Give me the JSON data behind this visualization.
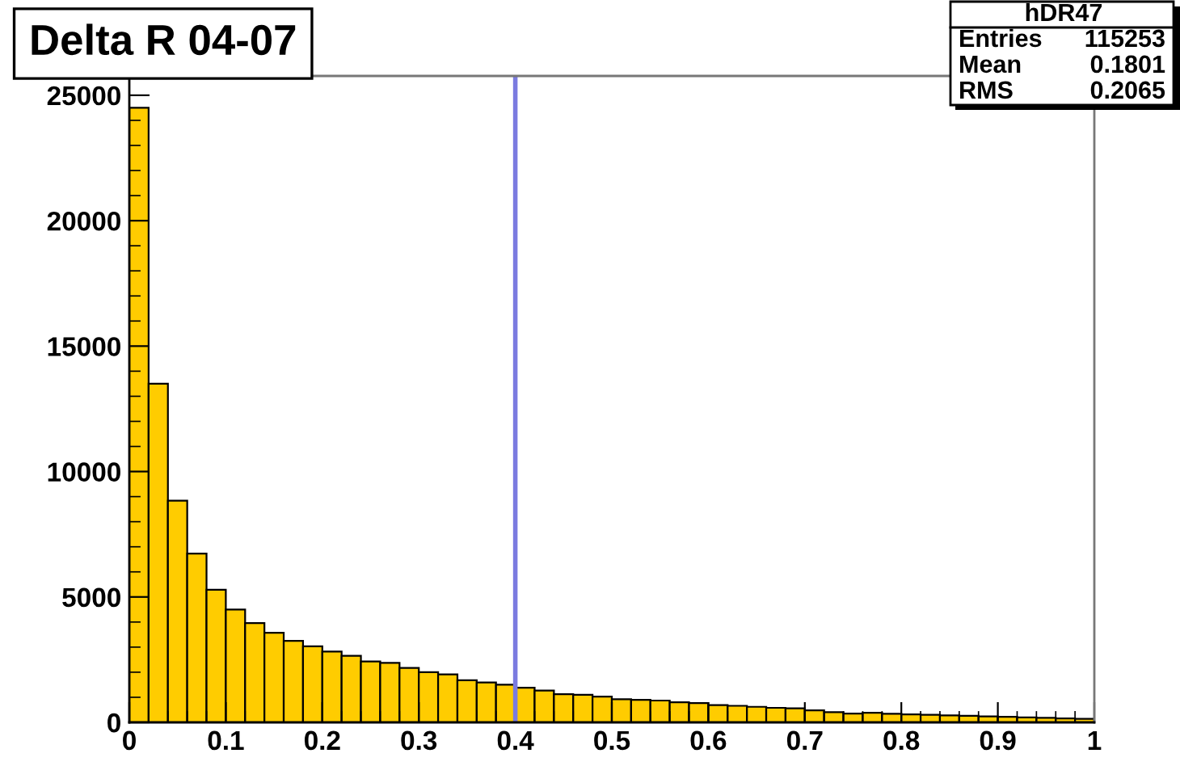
{
  "chart_data": {
    "type": "histogram",
    "title": "Delta R 04-07",
    "bins": [
      0,
      0.02,
      0.04,
      0.06,
      0.08,
      0.1,
      0.12,
      0.14,
      0.16,
      0.18,
      0.2,
      0.22,
      0.24,
      0.26,
      0.28,
      0.3,
      0.32,
      0.34,
      0.36,
      0.38,
      0.4,
      0.42,
      0.44,
      0.46,
      0.48,
      0.5,
      0.52,
      0.54,
      0.56,
      0.58,
      0.6,
      0.62,
      0.64,
      0.66,
      0.68,
      0.7,
      0.72,
      0.74,
      0.76,
      0.78,
      0.8,
      0.82,
      0.84,
      0.86,
      0.88,
      0.9,
      0.92,
      0.94,
      0.96,
      0.98,
      1
    ],
    "values": [
      24500,
      13500,
      8840,
      6730,
      5290,
      4500,
      3960,
      3570,
      3250,
      3030,
      2820,
      2650,
      2430,
      2370,
      2170,
      2000,
      1910,
      1680,
      1590,
      1500,
      1380,
      1270,
      1120,
      1100,
      1030,
      920,
      900,
      870,
      800,
      770,
      690,
      660,
      620,
      580,
      560,
      480,
      410,
      350,
      380,
      340,
      320,
      300,
      280,
      260,
      240,
      220,
      200,
      180,
      160,
      140
    ],
    "color": "#ffcc00",
    "xlim": [
      0,
      1
    ],
    "xticks": [
      0,
      0.1,
      0.2,
      0.3,
      0.4,
      0.5,
      0.6,
      0.7,
      0.8,
      0.9,
      1
    ],
    "ylim": [
      0,
      25770
    ],
    "yticks": [
      0,
      5000,
      10000,
      15000,
      20000,
      25000
    ],
    "ref_lines": [
      {
        "axis": "x",
        "value": 0.4,
        "color": "#7b7be0"
      }
    ],
    "annotations": [
      "hDR47",
      "Entries 115253",
      "Mean 0.1801",
      "RMS 0.2065"
    ],
    "grid": false
  }
}
